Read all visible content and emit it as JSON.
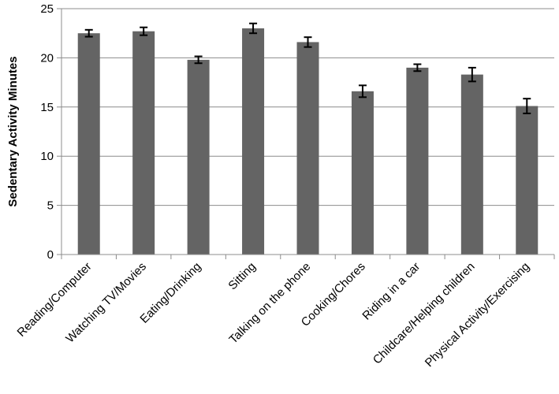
{
  "chart_data": {
    "type": "bar",
    "title": "",
    "xlabel": "",
    "ylabel": "Sedentary Activity Minutes",
    "ylim": [
      0,
      25
    ],
    "yticks": [
      0,
      5,
      10,
      15,
      20,
      25
    ],
    "grid": true,
    "legend": "none",
    "bar_color": "#646464",
    "categories": [
      "Reading/Computer",
      "Watching TV/Movies",
      "Eating/Drinking",
      "Sitting",
      "Talking on the phone",
      "Cooking/Chores",
      "Riding in a car",
      "Childcare/Helping children",
      "Physical Activity/Exercising"
    ],
    "values": [
      22.5,
      22.7,
      19.8,
      23.0,
      21.6,
      16.6,
      19.0,
      18.3,
      15.1
    ],
    "error": [
      0.35,
      0.4,
      0.35,
      0.5,
      0.5,
      0.6,
      0.35,
      0.7,
      0.75
    ]
  }
}
